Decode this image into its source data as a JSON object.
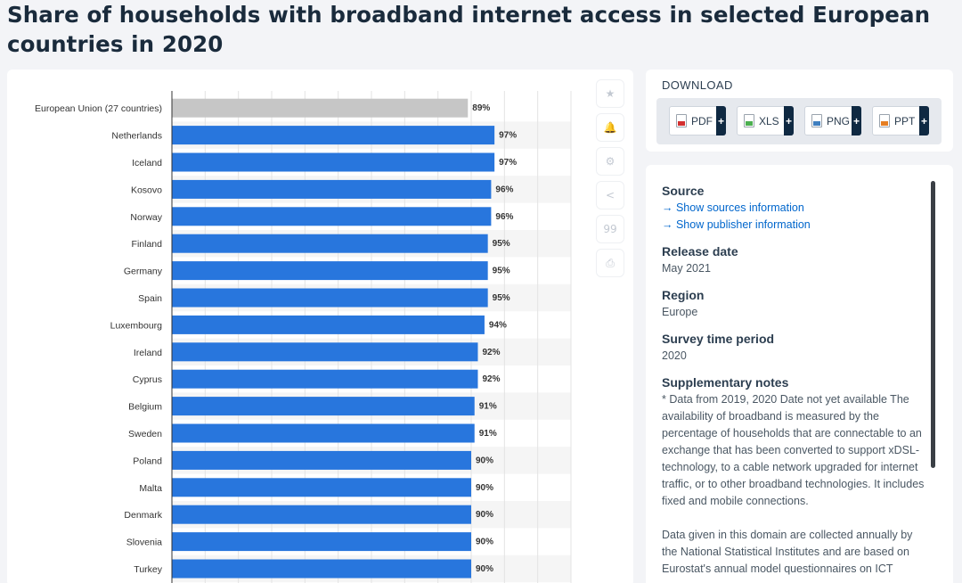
{
  "page_title": "Share of households with broadband internet access in selected European countries in 2020",
  "toolbar": {
    "icons": [
      "★",
      "🔔",
      "⚙",
      "<",
      "99",
      "⎙"
    ]
  },
  "download": {
    "title": "DOWNLOAD",
    "buttons": [
      {
        "label": "PDF",
        "color": "#d32f2f"
      },
      {
        "label": "XLS",
        "color": "#4caf50"
      },
      {
        "label": "PNG",
        "color": "#3f7fbf"
      },
      {
        "label": "PPT",
        "color": "#e67e22"
      }
    ],
    "plus": "+"
  },
  "info": {
    "source_heading": "Source",
    "source_link": "→ Show sources information",
    "publisher_link": "→ Show publisher information",
    "release_heading": "Release date",
    "release_value": "May 2021",
    "region_heading": "Region",
    "region_value": "Europe",
    "survey_heading": "Survey time period",
    "survey_value": "2020",
    "notes_heading": "Supplementary notes",
    "notes_p1": "* Data from 2019, 2020 Date not yet available The availability of broadband is measured by the percentage of households that are connectable to an exchange that has been converted to support xDSL-technology, to a cable network upgraded for internet traffic, or to other broadband technologies. It includes fixed and mobile connections.",
    "notes_p2": "Data given in this domain are collected annually by the National Statistical Institutes and are based on Eurostat's annual model questionnaires on ICT"
  },
  "chart_data": {
    "type": "bar",
    "orientation": "horizontal",
    "categories": [
      "European Union (27 countries)",
      "Netherlands",
      "Iceland",
      "Kosovo",
      "Norway",
      "Finland",
      "Germany",
      "Spain",
      "Luxembourg",
      "Ireland",
      "Cyprus",
      "Belgium",
      "Sweden",
      "Poland",
      "Malta",
      "Denmark",
      "Slovenia",
      "Turkey"
    ],
    "values": [
      89,
      97,
      97,
      96,
      96,
      95,
      95,
      95,
      94,
      92,
      92,
      91,
      91,
      90,
      90,
      90,
      90,
      90
    ],
    "labels": [
      "89%",
      "97%",
      "97%",
      "96%",
      "96%",
      "95%",
      "95%",
      "95%",
      "94%",
      "92%",
      "92%",
      "91%",
      "91%",
      "90%",
      "90%",
      "90%",
      "90%",
      "90%"
    ],
    "xlim": [
      0,
      120
    ],
    "colors": {
      "highlight": "#c6c6c6",
      "bar": "#2876dd"
    },
    "grid": true
  }
}
